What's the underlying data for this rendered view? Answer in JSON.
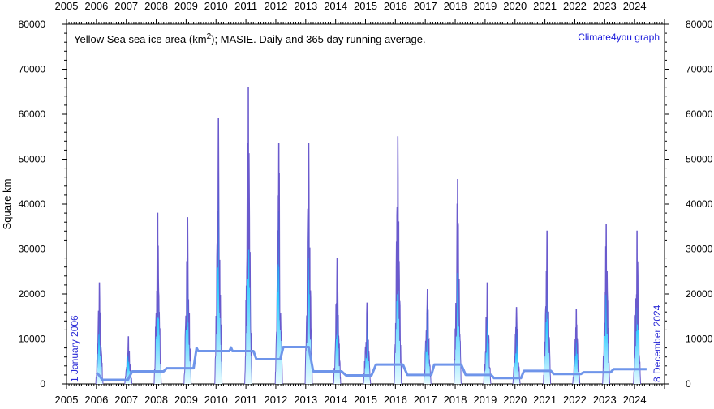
{
  "chart_data": {
    "type": "area",
    "title_prefix": "Yellow Sea sea ice area (km",
    "title_sup": "2",
    "title_suffix": "); MASIE. Daily and 365 day running average.",
    "credit": "Climate4you graph",
    "ylabel": "Square km",
    "xlabel": "",
    "start_date_label": "1 January 2006",
    "end_date_label": "8 December 2024",
    "xlim": [
      2005,
      2025
    ],
    "ylim": [
      0,
      80000
    ],
    "x_ticks": [
      "2005",
      "2006",
      "2007",
      "2008",
      "2009",
      "2010",
      "2011",
      "2012",
      "2013",
      "2014",
      "2015",
      "2016",
      "2017",
      "2018",
      "2019",
      "2020",
      "2021",
      "2022",
      "2023",
      "2024"
    ],
    "y_ticks": [
      "0",
      "10000",
      "20000",
      "30000",
      "40000",
      "50000",
      "60000",
      "70000",
      "80000"
    ],
    "grid": false,
    "colors": {
      "daily_base": "#33ccff",
      "daily_peak": "#0000aa",
      "daily_outline": "#6a5acd",
      "running_average": "#6f95ea"
    },
    "series": [
      {
        "kind": "daily",
        "seasons": [
          {
            "center": 2006.1,
            "peak": 22500
          },
          {
            "center": 2007.07,
            "peak": 10500
          },
          {
            "center": 2008.05,
            "peak": 38000
          },
          {
            "center": 2009.05,
            "peak": 37000
          },
          {
            "center": 2010.08,
            "peak": 59000
          },
          {
            "center": 2011.08,
            "peak": 66000
          },
          {
            "center": 2012.1,
            "peak": 53500
          },
          {
            "center": 2013.1,
            "peak": 53500
          },
          {
            "center": 2014.05,
            "peak": 28000
          },
          {
            "center": 2015.05,
            "peak": 18000
          },
          {
            "center": 2016.08,
            "peak": 55000
          },
          {
            "center": 2017.07,
            "peak": 21000
          },
          {
            "center": 2018.08,
            "peak": 45500
          },
          {
            "center": 2019.07,
            "peak": 22500
          },
          {
            "center": 2020.05,
            "peak": 17000
          },
          {
            "center": 2021.07,
            "peak": 34000
          },
          {
            "center": 2022.05,
            "peak": 16500
          },
          {
            "center": 2023.05,
            "peak": 35500
          },
          {
            "center": 2024.08,
            "peak": 34000
          }
        ]
      },
      {
        "kind": "running_average",
        "points": [
          [
            2006.0,
            2500
          ],
          [
            2006.08,
            2000
          ],
          [
            2006.2,
            900
          ],
          [
            2007.05,
            900
          ],
          [
            2007.2,
            2800
          ],
          [
            2008.25,
            2800
          ],
          [
            2008.35,
            3500
          ],
          [
            2009.25,
            3500
          ],
          [
            2009.35,
            8000
          ],
          [
            2009.4,
            7300
          ],
          [
            2010.45,
            7300
          ],
          [
            2010.5,
            8100
          ],
          [
            2010.55,
            7300
          ],
          [
            2011.25,
            7300
          ],
          [
            2011.35,
            5500
          ],
          [
            2012.15,
            5500
          ],
          [
            2012.25,
            8200
          ],
          [
            2013.1,
            8200
          ],
          [
            2013.25,
            2800
          ],
          [
            2014.2,
            2800
          ],
          [
            2014.35,
            1900
          ],
          [
            2015.2,
            1900
          ],
          [
            2015.35,
            4300
          ],
          [
            2016.25,
            4300
          ],
          [
            2016.4,
            2000
          ],
          [
            2017.2,
            2000
          ],
          [
            2017.3,
            4300
          ],
          [
            2018.2,
            4300
          ],
          [
            2018.35,
            2000
          ],
          [
            2019.2,
            2000
          ],
          [
            2019.3,
            1300
          ],
          [
            2020.2,
            1300
          ],
          [
            2020.3,
            2900
          ],
          [
            2021.2,
            2900
          ],
          [
            2021.3,
            2200
          ],
          [
            2022.2,
            2200
          ],
          [
            2022.3,
            2600
          ],
          [
            2023.2,
            2600
          ],
          [
            2023.3,
            3300
          ],
          [
            2024.4,
            3300
          ]
        ]
      }
    ]
  }
}
